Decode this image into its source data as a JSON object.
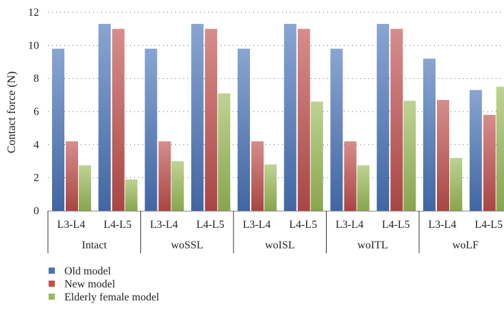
{
  "chart_data": {
    "type": "bar",
    "ylabel": "Contact force (N)",
    "xlabel": "",
    "title": "",
    "ylim": [
      0,
      12
    ],
    "yticks": [
      0,
      2,
      4,
      6,
      8,
      10,
      12
    ],
    "grid": "dotted horizontal",
    "legend_position": "bottom-left",
    "groups": [
      {
        "name": "Intact",
        "categories": [
          "L3-L4",
          "L4-L5"
        ]
      },
      {
        "name": "woSSL",
        "categories": [
          "L3-L4",
          "L4-L5"
        ]
      },
      {
        "name": "woISL",
        "categories": [
          "L3-L4",
          "L4-L5"
        ]
      },
      {
        "name": "woITL",
        "categories": [
          "L3-L4",
          "L4-L5"
        ]
      },
      {
        "name": "woLF",
        "categories": [
          "L3-L4",
          "L4-L5"
        ]
      }
    ],
    "series": [
      {
        "name": "Old model",
        "color": "#4a74b8",
        "values": [
          9.8,
          11.3,
          9.8,
          11.3,
          9.8,
          11.3,
          9.8,
          11.3,
          9.2,
          7.3
        ]
      },
      {
        "name": "New model",
        "color": "#c0504d",
        "values": [
          4.2,
          11.0,
          4.2,
          11.0,
          4.2,
          11.0,
          4.2,
          11.0,
          6.7,
          5.8
        ]
      },
      {
        "name": "Elderly female model",
        "color": "#9bbb59",
        "values": [
          2.75,
          1.9,
          3.0,
          7.1,
          2.8,
          6.6,
          2.75,
          6.65,
          3.2,
          7.5
        ]
      }
    ]
  }
}
